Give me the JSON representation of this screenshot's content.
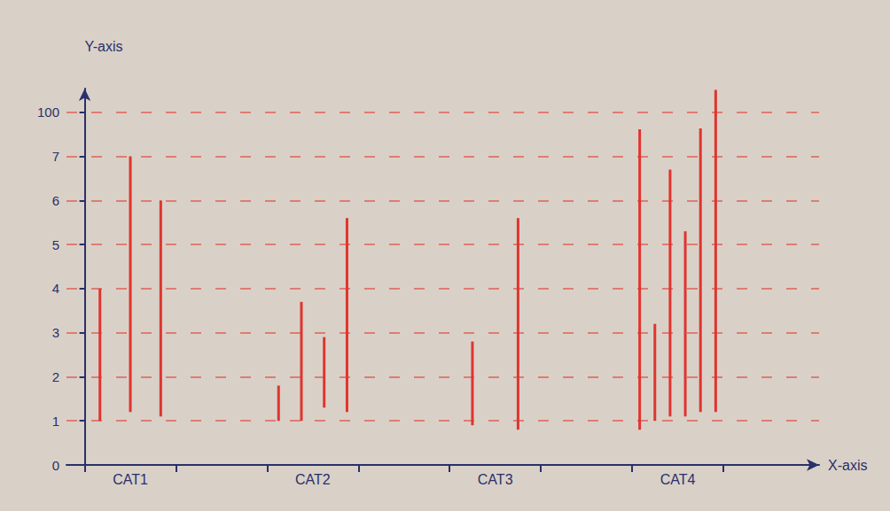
{
  "chart_data": {
    "type": "bar",
    "x_label": "X-axis",
    "y_label": "Y-axis",
    "categories": [
      "CAT1",
      "CAT2",
      "CAT3",
      "CAT4"
    ],
    "values": [
      [
        [
          1,
          4
        ],
        [
          1.2,
          7
        ],
        [
          1.1,
          6
        ]
      ],
      [
        [
          1,
          1.8
        ],
        [
          1,
          3.7
        ],
        [
          1.3,
          2.9
        ],
        [
          1.2,
          5.6
        ]
      ],
      [
        [
          0.9,
          2.8
        ],
        [
          0.8,
          5.6
        ]
      ],
      [
        [
          0.8,
          64
        ],
        [
          1,
          3.2
        ],
        [
          1.1,
          6.7
        ],
        [
          1.1,
          5.3
        ],
        [
          1.2,
          66
        ],
        [
          1.2,
          147
        ]
      ]
    ],
    "color": "#e0342f",
    "ylim": [
      0,
      150
    ],
    "yticks": [
      0,
      1,
      2,
      3,
      4,
      5,
      6,
      7,
      100
    ],
    "grid": true
  }
}
